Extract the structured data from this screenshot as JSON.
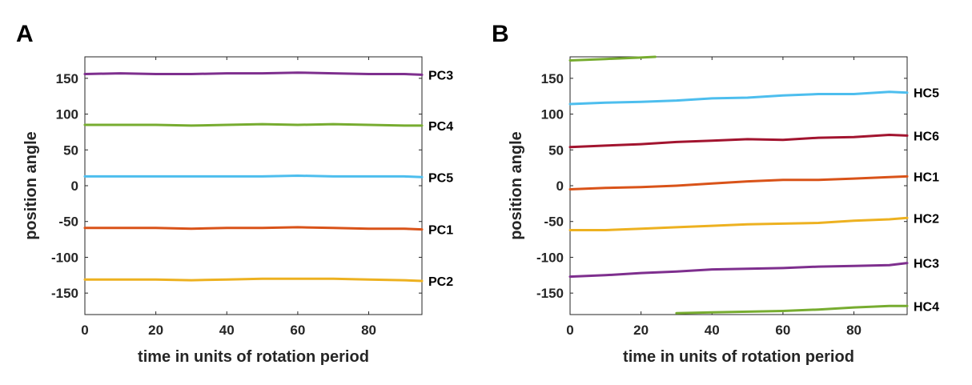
{
  "chart_data": [
    {
      "panel": "A",
      "type": "line",
      "xlabel": "time in units of rotation period",
      "ylabel": "position angle",
      "xlim": [
        0,
        95
      ],
      "ylim": [
        -180,
        180
      ],
      "xticks": [
        0,
        20,
        40,
        60,
        80
      ],
      "yticks": [
        150,
        100,
        50,
        0,
        -50,
        -100,
        -150
      ],
      "grid": false,
      "series": [
        {
          "name": "PC3",
          "color": "#7e2f8e",
          "x": [
            0,
            10,
            20,
            30,
            40,
            50,
            60,
            70,
            80,
            90,
            95
          ],
          "values": [
            156,
            157,
            156,
            156,
            157,
            157,
            158,
            157,
            156,
            156,
            155
          ]
        },
        {
          "name": "PC4",
          "color": "#77ac30",
          "x": [
            0,
            10,
            20,
            30,
            40,
            50,
            60,
            70,
            80,
            90,
            95
          ],
          "values": [
            85,
            85,
            85,
            84,
            85,
            86,
            85,
            86,
            85,
            84,
            84
          ]
        },
        {
          "name": "PC5",
          "color": "#4dbeee",
          "x": [
            0,
            10,
            20,
            30,
            40,
            50,
            60,
            70,
            80,
            90,
            95
          ],
          "values": [
            13,
            13,
            13,
            13,
            13,
            13,
            14,
            13,
            13,
            13,
            12
          ]
        },
        {
          "name": "PC1",
          "color": "#d95319",
          "x": [
            0,
            10,
            20,
            30,
            40,
            50,
            60,
            70,
            80,
            90,
            95
          ],
          "values": [
            -59,
            -59,
            -59,
            -60,
            -59,
            -59,
            -58,
            -59,
            -60,
            -60,
            -61
          ]
        },
        {
          "name": "PC2",
          "color": "#edb120",
          "x": [
            0,
            10,
            20,
            30,
            40,
            50,
            60,
            70,
            80,
            90,
            95
          ],
          "values": [
            -131,
            -131,
            -131,
            -132,
            -131,
            -130,
            -130,
            -130,
            -131,
            -132,
            -133
          ]
        }
      ]
    },
    {
      "panel": "B",
      "type": "line",
      "xlabel": "time in units of rotation period",
      "ylabel": "position angle",
      "xlim": [
        0,
        95
      ],
      "ylim": [
        -180,
        180
      ],
      "xticks": [
        0,
        20,
        40,
        60,
        80
      ],
      "yticks": [
        150,
        100,
        50,
        0,
        -50,
        -100,
        -150
      ],
      "grid": false,
      "series": [
        {
          "name": "HC5",
          "color": "#4dbeee",
          "x": [
            0,
            10,
            20,
            30,
            40,
            50,
            60,
            70,
            80,
            90,
            95
          ],
          "values": [
            114,
            116,
            117,
            119,
            122,
            123,
            126,
            128,
            128,
            131,
            130
          ]
        },
        {
          "name": "HC6",
          "color": "#a2142f",
          "x": [
            0,
            10,
            20,
            30,
            40,
            50,
            60,
            70,
            80,
            90,
            95
          ],
          "values": [
            54,
            56,
            58,
            61,
            63,
            65,
            64,
            67,
            68,
            71,
            70
          ]
        },
        {
          "name": "HC1",
          "color": "#d95319",
          "x": [
            0,
            10,
            20,
            30,
            40,
            50,
            60,
            70,
            80,
            90,
            95
          ],
          "values": [
            -5,
            -3,
            -2,
            0,
            3,
            6,
            8,
            8,
            10,
            12,
            13
          ]
        },
        {
          "name": "HC2",
          "color": "#edb120",
          "x": [
            0,
            10,
            20,
            30,
            40,
            50,
            60,
            70,
            80,
            90,
            95
          ],
          "values": [
            -62,
            -62,
            -60,
            -58,
            -56,
            -54,
            -53,
            -52,
            -49,
            -47,
            -45
          ]
        },
        {
          "name": "HC3",
          "color": "#7e2f8e",
          "x": [
            0,
            10,
            20,
            30,
            40,
            50,
            60,
            70,
            80,
            90,
            95
          ],
          "values": [
            -127,
            -125,
            -122,
            -120,
            -117,
            -116,
            -115,
            -113,
            -112,
            -111,
            -108
          ]
        },
        {
          "name": "HC4",
          "color": "#77ac30",
          "x": [
            0,
            10,
            20,
            24,
            30,
            40,
            50,
            60,
            70,
            80,
            90,
            95
          ],
          "values": [
            175,
            177,
            179,
            180,
            -178,
            -177,
            -176,
            -175,
            -173,
            -170,
            -168,
            -168
          ]
        }
      ]
    }
  ]
}
